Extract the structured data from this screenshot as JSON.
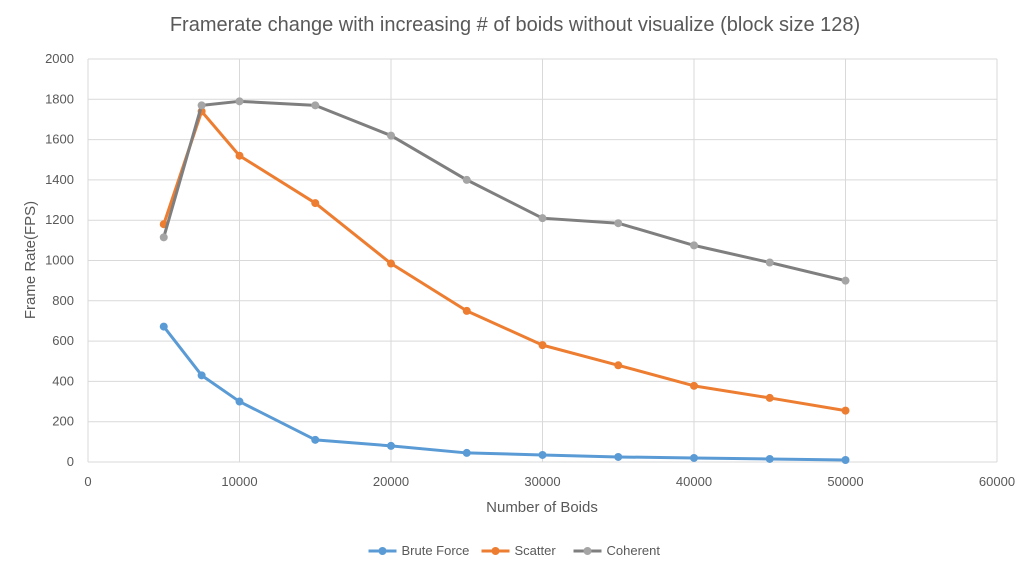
{
  "chart_data": {
    "type": "line",
    "title": "Framerate change with increasing # of boids without visualize (block size  128)",
    "xlabel": "Number of Boids",
    "ylabel": "Frame Rate(FPS)",
    "xlim": [
      0,
      60000
    ],
    "ylim": [
      0,
      2000
    ],
    "x_ticks": [
      0,
      10000,
      20000,
      30000,
      40000,
      50000,
      60000
    ],
    "y_ticks": [
      0,
      200,
      400,
      600,
      800,
      1000,
      1200,
      1400,
      1600,
      1800,
      2000
    ],
    "grid": true,
    "legend_position": "bottom",
    "x": [
      5000,
      7500,
      10000,
      15000,
      20000,
      25000,
      30000,
      35000,
      40000,
      45000,
      50000
    ],
    "series": [
      {
        "name": "Brute Force",
        "color": "#5b9bd5",
        "values": [
          672,
          430,
          300,
          110,
          80,
          45,
          35,
          25,
          20,
          15,
          10
        ]
      },
      {
        "name": "Scatter",
        "color": "#ed7d31",
        "values": [
          1180,
          1740,
          1520,
          1285,
          985,
          750,
          580,
          480,
          378,
          318,
          255
        ]
      },
      {
        "name": "Coherent",
        "color": "#a5a5a5",
        "line_color": "#7f7f7f",
        "values": [
          1115,
          1770,
          1790,
          1770,
          1620,
          1400,
          1210,
          1185,
          1075,
          990,
          900
        ]
      }
    ]
  }
}
